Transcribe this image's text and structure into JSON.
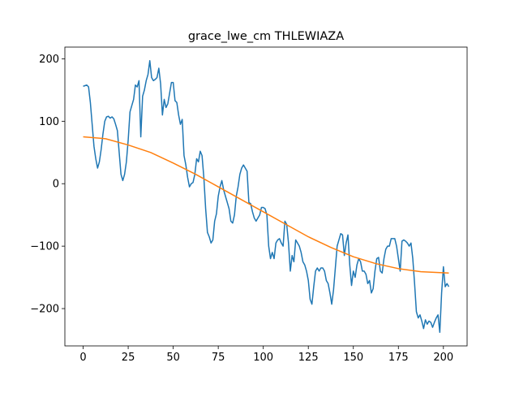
{
  "chart_data": {
    "type": "line",
    "title": "grace_lwe_cm THLEWIAZA",
    "xlim": [
      -10.15,
      213.15
    ],
    "ylim": [
      -259.75,
      218.75
    ],
    "xticks": [
      0,
      25,
      50,
      75,
      100,
      125,
      150,
      175,
      200
    ],
    "yticks": [
      {
        "value": -200,
        "label": "−200"
      },
      {
        "value": -100,
        "label": "−100"
      },
      0,
      100,
      200
    ],
    "series": [
      {
        "color": "#1f77b4",
        "x": [
          0,
          1,
          2,
          3,
          4,
          5,
          6,
          7,
          8,
          9,
          10,
          11,
          12,
          13,
          14,
          15,
          16,
          17,
          18,
          19,
          20,
          21,
          22,
          23,
          24,
          25,
          26,
          27,
          28,
          29,
          30,
          31,
          32,
          33,
          34,
          35,
          36,
          37,
          38,
          39,
          40,
          41,
          42,
          43,
          44,
          45,
          46,
          47,
          48,
          49,
          50,
          51,
          52,
          53,
          54,
          55,
          56,
          57,
          58,
          59,
          60,
          61,
          62,
          63,
          64,
          65,
          66,
          67,
          68,
          69,
          70,
          71,
          72,
          73,
          74,
          75,
          76,
          77,
          78,
          79,
          80,
          81,
          82,
          83,
          84,
          85,
          86,
          87,
          88,
          89,
          90,
          91,
          92,
          93,
          94,
          95,
          96,
          97,
          98,
          99,
          100,
          101,
          102,
          103,
          104,
          105,
          106,
          107,
          108,
          109,
          110,
          111,
          112,
          113,
          114,
          115,
          116,
          117,
          118,
          119,
          120,
          121,
          122,
          123,
          124,
          125,
          126,
          127,
          128,
          129,
          130,
          131,
          132,
          133,
          134,
          135,
          136,
          137,
          138,
          139,
          140,
          141,
          142,
          143,
          144,
          145,
          146,
          147,
          148,
          149,
          150,
          151,
          152,
          153,
          154,
          155,
          156,
          157,
          158,
          159,
          160,
          161,
          162,
          163,
          164,
          165,
          166,
          167,
          168,
          169,
          170,
          171,
          172,
          173,
          174,
          175,
          176,
          177,
          178,
          179,
          180,
          181,
          182,
          183,
          184,
          185,
          186,
          187,
          188,
          189,
          190,
          191,
          192,
          193,
          194,
          195,
          196,
          197,
          198,
          199,
          200,
          201,
          202,
          203
        ],
        "values": [
          156,
          157,
          158,
          155,
          130,
          95,
          60,
          40,
          25,
          35,
          55,
          80,
          100,
          107,
          108,
          105,
          107,
          104,
          95,
          85,
          50,
          15,
          5,
          15,
          35,
          70,
          115,
          125,
          135,
          158,
          155,
          165,
          75,
          140,
          150,
          165,
          175,
          197,
          170,
          165,
          167,
          170,
          185,
          160,
          110,
          135,
          122,
          128,
          145,
          162,
          162,
          133,
          130,
          110,
          95,
          103,
          45,
          30,
          10,
          -5,
          0,
          2,
          15,
          40,
          35,
          52,
          45,
          10,
          -40,
          -78,
          -85,
          -95,
          -90,
          -60,
          -48,
          -20,
          -5,
          5,
          -10,
          -20,
          -30,
          -40,
          -60,
          -63,
          -50,
          -20,
          -5,
          15,
          25,
          30,
          25,
          20,
          -30,
          -32,
          -45,
          -55,
          -60,
          -55,
          -50,
          -38,
          -38,
          -40,
          -50,
          -100,
          -120,
          -110,
          -120,
          -95,
          -90,
          -88,
          -95,
          -100,
          -60,
          -65,
          -95,
          -140,
          -115,
          -125,
          -90,
          -95,
          -100,
          -110,
          -125,
          -130,
          -140,
          -155,
          -185,
          -193,
          -165,
          -140,
          -135,
          -140,
          -135,
          -135,
          -140,
          -155,
          -160,
          -175,
          -193,
          -170,
          -135,
          -100,
          -90,
          -80,
          -82,
          -115,
          -95,
          -82,
          -130,
          -163,
          -140,
          -150,
          -130,
          -120,
          -125,
          -140,
          -140,
          -145,
          -160,
          -155,
          -175,
          -168,
          -140,
          -120,
          -118,
          -140,
          -143,
          -120,
          -105,
          -100,
          -100,
          -88,
          -88,
          -88,
          -100,
          -120,
          -140,
          -92,
          -90,
          -92,
          -95,
          -100,
          -95,
          -120,
          -160,
          -205,
          -215,
          -210,
          -220,
          -232,
          -218,
          -225,
          -220,
          -222,
          -230,
          -222,
          -215,
          -210,
          -238,
          -175,
          -133,
          -165,
          -160,
          -165
        ]
      },
      {
        "color": "#ff7f0e",
        "x": [
          0,
          12.5,
          25,
          37.5,
          50,
          62.5,
          75,
          87.5,
          100,
          112.5,
          125,
          137.5,
          150,
          162.5,
          175,
          187.5,
          203
        ],
        "values": [
          75,
          72,
          62,
          50,
          33,
          15,
          -5,
          -25,
          -45,
          -65,
          -85,
          -102,
          -117,
          -128,
          -136,
          -141,
          -143
        ]
      }
    ]
  }
}
